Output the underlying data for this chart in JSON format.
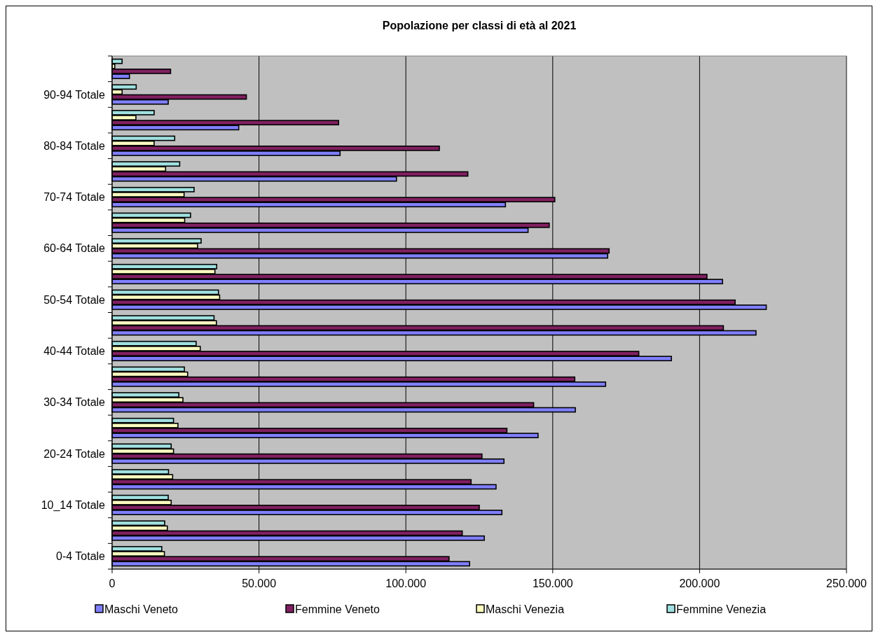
{
  "chart_data": {
    "type": "bar",
    "orientation": "horizontal",
    "title": "Popolazione per classi di età al 2021",
    "categories": [
      null,
      "90-94 Totale",
      null,
      "80-84 Totale",
      null,
      "70-74 Totale",
      null,
      "60-64 Totale",
      null,
      "50-54 Totale",
      null,
      "40-44 Totale",
      null,
      "30-34 Totale",
      null,
      "20-24 Totale",
      null,
      "10_14 Totale",
      null,
      "0-4 Totale"
    ],
    "series": [
      {
        "name": "Maschi Veneto",
        "color": "#8080ff",
        "values": [
          5900,
          19100,
          43100,
          77600,
          96800,
          133900,
          141600,
          168700,
          207800,
          222700,
          219200,
          190400,
          168000,
          157700,
          145000,
          133400,
          130700,
          132700,
          126700,
          121700
        ]
      },
      {
        "name": "Femmine Veneto",
        "color": "#802060",
        "values": [
          19900,
          45700,
          77100,
          111400,
          121100,
          150700,
          148800,
          169200,
          202500,
          212100,
          208100,
          179300,
          157500,
          143500,
          134400,
          125900,
          122200,
          125000,
          119200,
          114700
        ]
      },
      {
        "name": "Maschi Venezia",
        "color": "#ffffc0",
        "values": [
          900,
          3400,
          8100,
          14300,
          18200,
          24500,
          24700,
          29100,
          35000,
          36600,
          35500,
          30000,
          25700,
          24100,
          22400,
          20900,
          20600,
          20100,
          18800,
          17800
        ]
      },
      {
        "name": "Femmine Venezia",
        "color": "#a0e0e0",
        "values": [
          3400,
          8200,
          14300,
          21300,
          23000,
          27900,
          26700,
          30300,
          35600,
          36200,
          34700,
          28600,
          24600,
          22700,
          20900,
          20100,
          19200,
          19100,
          17900,
          16900
        ]
      }
    ],
    "xlim": [
      0,
      250000
    ],
    "xticks": [
      0,
      {
        "value": 50000,
        "label": "50.000"
      },
      {
        "value": 100000,
        "label": "100.000"
      },
      {
        "value": 150000,
        "label": "150.000"
      },
      {
        "value": 200000,
        "label": "200.000"
      },
      {
        "value": 250000,
        "label": "250.000"
      }
    ],
    "grid": "x",
    "legend": "bottom"
  }
}
